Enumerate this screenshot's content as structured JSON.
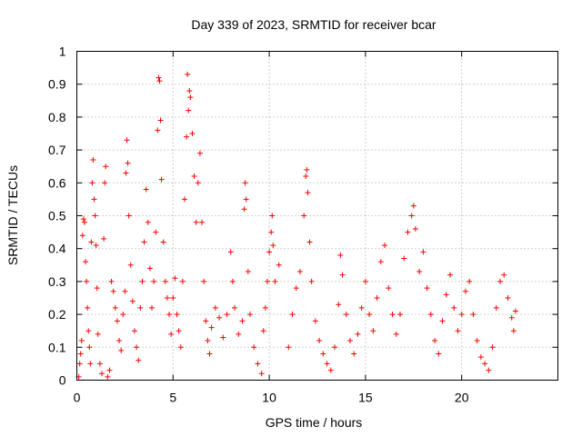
{
  "chart_data": {
    "type": "scatter",
    "title": "Day 339 of 2023, SRMTID for receiver bcar",
    "xlabel": "GPS time / hours",
    "ylabel": "SRMTID / TECUs",
    "xlim": [
      0,
      25
    ],
    "ylim": [
      0,
      1
    ],
    "grid": true,
    "marker": "+",
    "color": "#ff0000",
    "xticks": [
      0,
      5,
      10,
      15,
      20
    ],
    "xtick_labels": [
      "0",
      "5",
      "10",
      "15",
      "20"
    ],
    "yticks": [
      0,
      0.1,
      0.2,
      0.3,
      0.4,
      0.5,
      0.6,
      0.7,
      0.8,
      0.9,
      1
    ],
    "ytick_labels": [
      "0",
      "0.1",
      "0.2",
      "0.3",
      "0.4",
      "0.5",
      "0.6",
      "0.7",
      "0.8",
      "0.9",
      "1"
    ],
    "series": [
      {
        "name": "SRMTID",
        "points": [
          [
            0.1,
            0.01
          ],
          [
            0.15,
            0.05
          ],
          [
            0.2,
            0.08
          ],
          [
            0.25,
            0.12
          ],
          [
            0.3,
            0.44
          ],
          [
            0.35,
            0.49
          ],
          [
            0.4,
            0.48
          ],
          [
            0.45,
            0.36
          ],
          [
            0.5,
            0.3
          ],
          [
            0.55,
            0.22
          ],
          [
            0.6,
            0.15
          ],
          [
            0.65,
            0.1
          ],
          [
            0.7,
            0.05
          ],
          [
            0.75,
            0.42
          ],
          [
            0.8,
            0.6
          ],
          [
            0.85,
            0.67
          ],
          [
            0.9,
            0.55
          ],
          [
            0.95,
            0.5
          ],
          [
            1.0,
            0.41
          ],
          [
            1.05,
            0.28
          ],
          [
            1.1,
            0.14
          ],
          [
            1.2,
            0.05
          ],
          [
            1.3,
            0.02
          ],
          [
            1.4,
            0.43
          ],
          [
            1.45,
            0.6
          ],
          [
            1.5,
            0.65
          ],
          [
            1.6,
            0.01
          ],
          [
            1.7,
            0.03
          ],
          [
            1.8,
            0.3
          ],
          [
            1.9,
            0.27
          ],
          [
            2.0,
            0.22
          ],
          [
            2.1,
            0.18
          ],
          [
            2.2,
            0.12
          ],
          [
            2.3,
            0.09
          ],
          [
            2.4,
            0.2
          ],
          [
            2.5,
            0.27
          ],
          [
            2.55,
            0.63
          ],
          [
            2.6,
            0.73
          ],
          [
            2.65,
            0.66
          ],
          [
            2.7,
            0.5
          ],
          [
            2.8,
            0.35
          ],
          [
            2.9,
            0.24
          ],
          [
            3.0,
            0.15
          ],
          [
            3.1,
            0.1
          ],
          [
            3.2,
            0.06
          ],
          [
            3.3,
            0.22
          ],
          [
            3.4,
            0.3
          ],
          [
            3.5,
            0.42
          ],
          [
            3.6,
            0.58
          ],
          [
            3.7,
            0.48
          ],
          [
            3.8,
            0.34
          ],
          [
            3.9,
            0.22
          ],
          [
            4.0,
            0.3
          ],
          [
            4.1,
            0.45
          ],
          [
            4.2,
            0.76
          ],
          [
            4.25,
            0.92
          ],
          [
            4.3,
            0.91
          ],
          [
            4.35,
            0.79
          ],
          [
            4.4,
            0.61
          ],
          [
            4.5,
            0.42
          ],
          [
            4.6,
            0.3
          ],
          [
            4.7,
            0.25
          ],
          [
            4.8,
            0.2
          ],
          [
            4.9,
            0.14
          ],
          [
            5.0,
            0.25
          ],
          [
            5.1,
            0.31
          ],
          [
            5.2,
            0.2
          ],
          [
            5.3,
            0.15
          ],
          [
            5.4,
            0.1
          ],
          [
            5.5,
            0.3
          ],
          [
            5.6,
            0.55
          ],
          [
            5.7,
            0.74
          ],
          [
            5.75,
            0.93
          ],
          [
            5.8,
            0.82
          ],
          [
            5.85,
            0.88
          ],
          [
            5.9,
            0.86
          ],
          [
            6.0,
            0.75
          ],
          [
            6.1,
            0.62
          ],
          [
            6.2,
            0.48
          ],
          [
            6.3,
            0.6
          ],
          [
            6.4,
            0.69
          ],
          [
            6.5,
            0.48
          ],
          [
            6.6,
            0.3
          ],
          [
            6.7,
            0.18
          ],
          [
            6.8,
            0.12
          ],
          [
            6.9,
            0.08
          ],
          [
            7.0,
            0.16
          ],
          [
            7.2,
            0.22
          ],
          [
            7.4,
            0.19
          ],
          [
            7.6,
            0.13
          ],
          [
            7.8,
            0.2
          ],
          [
            8.0,
            0.39
          ],
          [
            8.1,
            0.3
          ],
          [
            8.2,
            0.22
          ],
          [
            8.4,
            0.14
          ],
          [
            8.6,
            0.18
          ],
          [
            8.7,
            0.52
          ],
          [
            8.75,
            0.6
          ],
          [
            8.8,
            0.55
          ],
          [
            8.9,
            0.33
          ],
          [
            9.0,
            0.2
          ],
          [
            9.2,
            0.1
          ],
          [
            9.4,
            0.05
          ],
          [
            9.6,
            0.02
          ],
          [
            9.7,
            0.15
          ],
          [
            9.8,
            0.22
          ],
          [
            9.9,
            0.3
          ],
          [
            10.0,
            0.39
          ],
          [
            10.1,
            0.45
          ],
          [
            10.15,
            0.5
          ],
          [
            10.2,
            0.41
          ],
          [
            10.3,
            0.3
          ],
          [
            10.5,
            0.35
          ],
          [
            11.0,
            0.1
          ],
          [
            11.2,
            0.2
          ],
          [
            11.4,
            0.28
          ],
          [
            11.6,
            0.33
          ],
          [
            11.8,
            0.5
          ],
          [
            11.9,
            0.62
          ],
          [
            11.95,
            0.64
          ],
          [
            12.0,
            0.57
          ],
          [
            12.1,
            0.42
          ],
          [
            12.2,
            0.3
          ],
          [
            12.4,
            0.18
          ],
          [
            12.6,
            0.12
          ],
          [
            12.8,
            0.08
          ],
          [
            13.0,
            0.05
          ],
          [
            13.2,
            0.03
          ],
          [
            13.4,
            0.1
          ],
          [
            13.6,
            0.23
          ],
          [
            13.7,
            0.38
          ],
          [
            13.8,
            0.32
          ],
          [
            14.0,
            0.2
          ],
          [
            14.2,
            0.12
          ],
          [
            14.4,
            0.08
          ],
          [
            14.6,
            0.14
          ],
          [
            14.8,
            0.22
          ],
          [
            15.0,
            0.3
          ],
          [
            15.2,
            0.2
          ],
          [
            15.4,
            0.15
          ],
          [
            15.6,
            0.25
          ],
          [
            15.8,
            0.36
          ],
          [
            16.0,
            0.41
          ],
          [
            16.2,
            0.28
          ],
          [
            16.4,
            0.2
          ],
          [
            16.6,
            0.14
          ],
          [
            16.8,
            0.2
          ],
          [
            17.0,
            0.37
          ],
          [
            17.2,
            0.45
          ],
          [
            17.4,
            0.5
          ],
          [
            17.5,
            0.53
          ],
          [
            17.6,
            0.46
          ],
          [
            17.8,
            0.33
          ],
          [
            18.0,
            0.39
          ],
          [
            18.2,
            0.28
          ],
          [
            18.4,
            0.2
          ],
          [
            18.6,
            0.12
          ],
          [
            18.8,
            0.08
          ],
          [
            19.0,
            0.18
          ],
          [
            19.2,
            0.26
          ],
          [
            19.4,
            0.32
          ],
          [
            19.6,
            0.22
          ],
          [
            19.8,
            0.15
          ],
          [
            20.0,
            0.2
          ],
          [
            20.2,
            0.27
          ],
          [
            20.4,
            0.3
          ],
          [
            20.6,
            0.2
          ],
          [
            20.8,
            0.12
          ],
          [
            21.0,
            0.07
          ],
          [
            21.2,
            0.05
          ],
          [
            21.4,
            0.03
          ],
          [
            21.6,
            0.1
          ],
          [
            21.8,
            0.22
          ],
          [
            22.0,
            0.3
          ],
          [
            22.2,
            0.32
          ],
          [
            22.4,
            0.25
          ],
          [
            22.6,
            0.19
          ],
          [
            22.7,
            0.15
          ],
          [
            22.8,
            0.21
          ]
        ]
      }
    ]
  }
}
